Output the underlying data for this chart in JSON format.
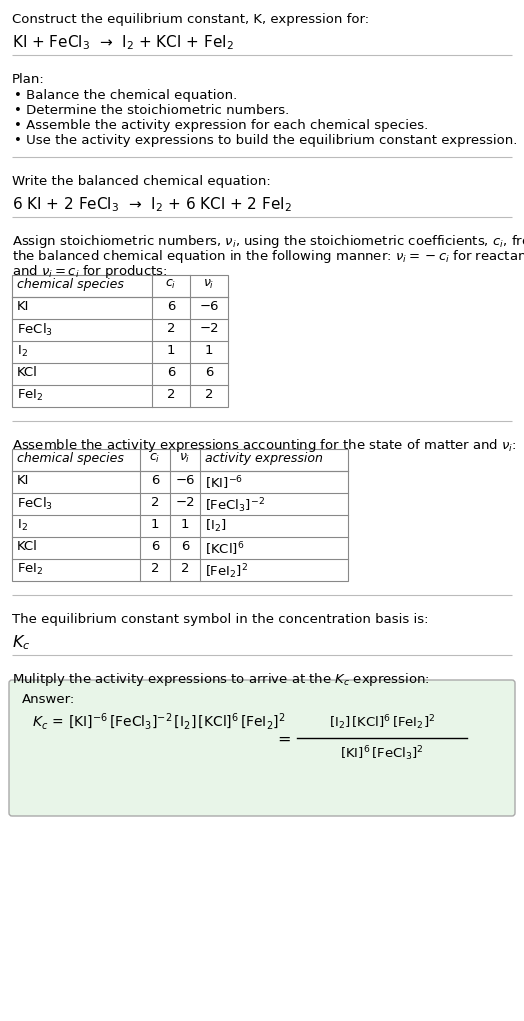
{
  "title_line1": "Construct the equilibrium constant, K, expression for:",
  "title_line2": "KI + FeCl$_3$  →  I$_2$ + KCl + FeI$_2$",
  "plan_header": "Plan:",
  "plan_bullets": [
    "• Balance the chemical equation.",
    "• Determine the stoichiometric numbers.",
    "• Assemble the activity expression for each chemical species.",
    "• Use the activity expressions to build the equilibrium constant expression."
  ],
  "balanced_header": "Write the balanced chemical equation:",
  "balanced_eq": "6 KI + 2 FeCl$_3$  →  I$_2$ + 6 KCl + 2 FeI$_2$",
  "stoich_intro": "Assign stoichiometric numbers, $\\nu_i$, using the stoichiometric coefficients, $c_i$, from the balanced chemical equation in the following manner: $\\nu_i = -c_i$ for reactants and $\\nu_i = c_i$ for products:",
  "table1_headers": [
    "chemical species",
    "$c_i$",
    "$\\nu_i$"
  ],
  "table1_rows": [
    [
      "KI",
      "6",
      "−6"
    ],
    [
      "FeCl$_3$",
      "2",
      "−2"
    ],
    [
      "I$_2$",
      "1",
      "1"
    ],
    [
      "KCl",
      "6",
      "6"
    ],
    [
      "FeI$_2$",
      "2",
      "2"
    ]
  ],
  "activity_header": "Assemble the activity expressions accounting for the state of matter and $\\nu_i$:",
  "table2_headers": [
    "chemical species",
    "$c_i$",
    "$\\nu_i$",
    "activity expression"
  ],
  "table2_rows": [
    [
      "KI",
      "6",
      "−6",
      "[KI]$^{-6}$"
    ],
    [
      "FeCl$_3$",
      "2",
      "−2",
      "[FeCl$_3$]$^{-2}$"
    ],
    [
      "I$_2$",
      "1",
      "1",
      "[I$_2$]"
    ],
    [
      "KCl",
      "6",
      "6",
      "[KCl]$^6$"
    ],
    [
      "FeI$_2$",
      "2",
      "2",
      "[FeI$_2$]$^2$"
    ]
  ],
  "kc_header": "The equilibrium constant symbol in the concentration basis is:",
  "kc_symbol": "$K_c$",
  "multiply_header": "Mulitply the activity expressions to arrive at the $K_c$ expression:",
  "answer_label": "Answer:",
  "bg_color": "#ffffff",
  "text_color": "#000000",
  "sep_color": "#bbbbbb",
  "table_color": "#888888",
  "answer_bg": "#e8f5e8",
  "font_size": 9.5
}
